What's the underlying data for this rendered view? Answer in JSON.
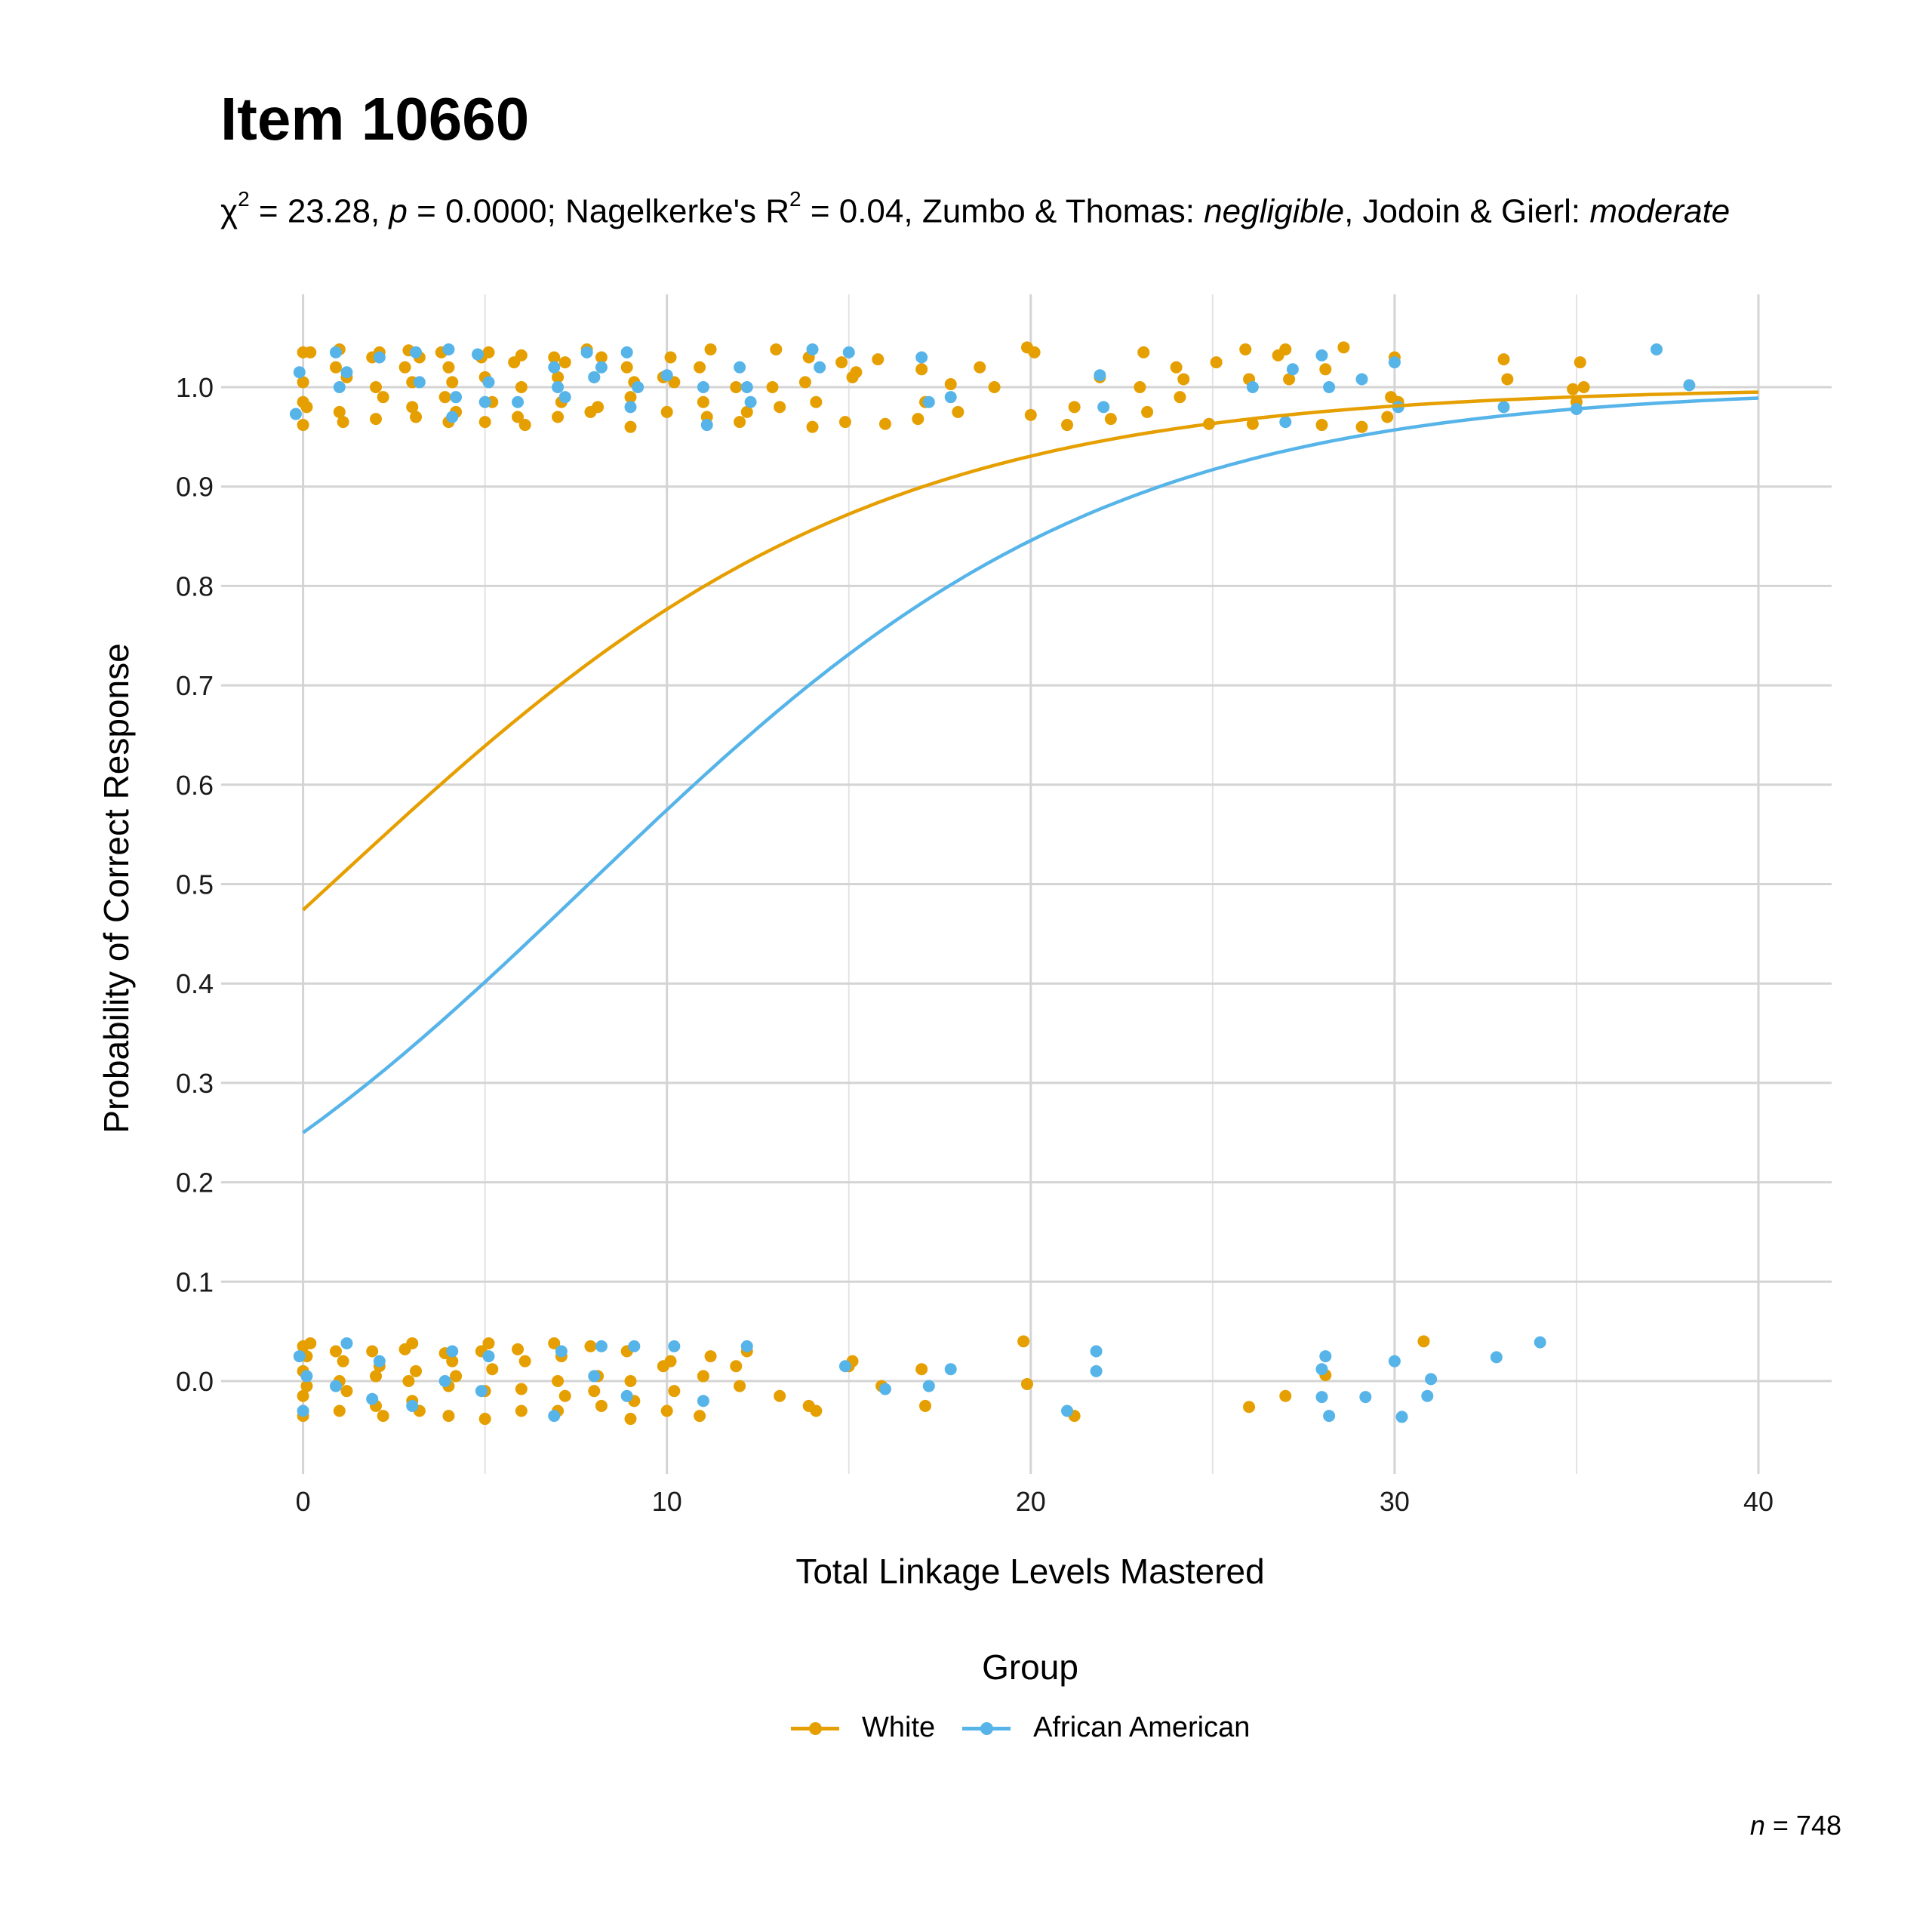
{
  "header": {
    "title": "Item 10660",
    "subtitle": {
      "chi_symbol": "χ",
      "chi_sup": "2",
      "chi_value": " = 23.28, ",
      "p_symbol": "p",
      "p_value": " = 0.0000; Nagelkerke's R",
      "r_sup": "2",
      "r_value": " = 0.04, Zumbo & Thomas: ",
      "zumbo_effect": "negligible",
      "mid": ", Jodoin & Gierl: ",
      "jodoin_effect": "moderate"
    }
  },
  "axes": {
    "xlabel": "Total Linkage Levels Mastered",
    "ylabel": "Probability of Correct Response"
  },
  "legend": {
    "title": "Group",
    "items": [
      {
        "label": "White",
        "color": "#E69F00"
      },
      {
        "label": "African American",
        "color": "#56B4E9"
      }
    ]
  },
  "caption": {
    "n_symbol": "n",
    "n_value": " = 748"
  },
  "chart_data": {
    "type": "scatter",
    "title": "Item 10660",
    "subtitle": "χ2 = 23.28, p = 0.0000; Nagelkerke's R2 = 0.04, Zumbo & Thomas: negligible, Jodoin & Gierl: moderate",
    "xlabel": "Total Linkage Levels Mastered",
    "ylabel": "Probability of Correct Response",
    "xlim": [
      -2,
      42
    ],
    "ylim": [
      -0.093,
      1.095
    ],
    "xticks": [
      0,
      10,
      20,
      30,
      40
    ],
    "yticks": [
      0.0,
      0.1,
      0.2,
      0.3,
      0.4,
      0.5,
      0.6,
      0.7,
      0.8,
      0.9,
      1.0
    ],
    "ytick_labels": [
      "0.0",
      "0.1",
      "0.2",
      "0.3",
      "0.4",
      "0.5",
      "0.6",
      "0.7",
      "0.8",
      "0.9",
      "1.0"
    ],
    "grid": true,
    "legend_position": "bottom",
    "n": 748,
    "series": [
      {
        "name": "White",
        "color": "#E69F00",
        "curve": {
          "model": "logistic",
          "intercept": -0.104,
          "slope": 0.135,
          "x": [
            0,
            5,
            10,
            15,
            20,
            25,
            30,
            35,
            40
          ],
          "y": [
            0.474,
            0.64,
            0.785,
            0.88,
            0.935,
            0.966,
            0.982,
            0.991,
            0.995
          ]
        },
        "points_correct_x": [
          0,
          0,
          0,
          0,
          0.1,
          0.2,
          0.9,
          1,
          1,
          1.1,
          1.2,
          1.9,
          2,
          2,
          2.1,
          2.2,
          2.8,
          2.9,
          3,
          3,
          3.1,
          3.2,
          3.8,
          3.9,
          4,
          4,
          4.1,
          4.2,
          4.9,
          5,
          5,
          5.1,
          5.2,
          5.8,
          5.9,
          6,
          6,
          6.1,
          6.9,
          7,
          7,
          7.1,
          7.2,
          7.8,
          7.9,
          8,
          8.1,
          8.2,
          8.9,
          9,
          9,
          9.1,
          9.9,
          10,
          10.1,
          10.2,
          10.9,
          11,
          11.1,
          11.2,
          11.9,
          12,
          12.2,
          12.9,
          13,
          13.1,
          13.8,
          13.9,
          14,
          14.1,
          14.8,
          14.9,
          15.1,
          15.2,
          15.8,
          16,
          16.9,
          17,
          17.1,
          17.8,
          18,
          18.6,
          19,
          19.9,
          20,
          20.1,
          21,
          21.2,
          21.9,
          22.2,
          23,
          23.1,
          23.2,
          24,
          24.1,
          24.2,
          24.9,
          25.1,
          25.9,
          26,
          26.1,
          26.8,
          27,
          27.1,
          28,
          28.1,
          28.6,
          29.1,
          29.8,
          29.9,
          30,
          30.1,
          33,
          33.1,
          34.9,
          35,
          35.1,
          35.2
        ],
        "points_correct_y": [
          1.035,
          0.985,
          0.962,
          1.005,
          0.98,
          1.035,
          1.02,
          1.038,
          0.975,
          0.965,
          1.01,
          1.03,
          1.0,
          0.968,
          1.035,
          0.99,
          1.02,
          1.037,
          0.98,
          1.005,
          0.97,
          1.03,
          1.035,
          0.99,
          1.02,
          0.965,
          1.005,
          0.975,
          1.03,
          0.965,
          1.01,
          1.035,
          0.985,
          1.025,
          0.97,
          1.032,
          1.0,
          0.962,
          1.03,
          0.97,
          1.01,
          0.985,
          1.025,
          1.038,
          0.975,
          1.01,
          0.98,
          1.03,
          1.02,
          0.96,
          0.99,
          1.005,
          1.01,
          0.975,
          1.03,
          1.005,
          1.02,
          0.985,
          0.97,
          1.038,
          1.0,
          0.965,
          0.975,
          1.0,
          1.038,
          0.98,
          1.005,
          1.03,
          0.96,
          0.985,
          1.025,
          0.965,
          1.01,
          1.015,
          1.028,
          0.963,
          0.968,
          1.018,
          0.985,
          1.003,
          0.975,
          1.02,
          1.0,
          1.04,
          0.972,
          1.035,
          0.962,
          0.98,
          1.01,
          0.968,
          1.0,
          1.035,
          0.975,
          1.02,
          0.99,
          1.008,
          0.963,
          1.025,
          1.038,
          1.008,
          0.963,
          1.032,
          1.038,
          1.008,
          0.962,
          1.018,
          1.04,
          0.96,
          0.97,
          0.99,
          1.03,
          0.985,
          1.028,
          1.008,
          0.998,
          0.985,
          1.025,
          1.0,
          1.038,
          0.975
        ],
        "points_incorrect_x": [
          0,
          0,
          0,
          0,
          0.1,
          0.1,
          0.2,
          0.9,
          1,
          1,
          1.1,
          1.2,
          1.9,
          2,
          2,
          2.1,
          2.2,
          2.8,
          2.9,
          3,
          3,
          3.1,
          3.2,
          3.9,
          4,
          4,
          4.1,
          4.2,
          4.9,
          5,
          5,
          5.1,
          5.2,
          5.9,
          6,
          6,
          6.1,
          6.9,
          7,
          7,
          7.1,
          7.2,
          7.9,
          8,
          8.1,
          8.2,
          8.9,
          9,
          9,
          9.1,
          9.9,
          10,
          10.1,
          10.2,
          10.9,
          11,
          11.2,
          11.9,
          12,
          12.2,
          13.1,
          13.9,
          14.1,
          15,
          15.1,
          15.9,
          17,
          17.1,
          19.8,
          19.9,
          21.2,
          26,
          27,
          28.1,
          30.8
        ],
        "points_incorrect_y": [
          0.035,
          0.01,
          -0.015,
          -0.035,
          0.025,
          -0.005,
          0.038,
          0.03,
          0.0,
          -0.03,
          0.02,
          -0.01,
          0.03,
          0.005,
          -0.025,
          0.015,
          -0.035,
          0.032,
          0.0,
          -0.02,
          0.038,
          0.01,
          -0.03,
          0.028,
          -0.005,
          -0.035,
          0.02,
          0.005,
          0.03,
          -0.01,
          -0.038,
          0.038,
          0.012,
          0.032,
          -0.008,
          -0.03,
          0.02,
          0.038,
          0.0,
          -0.03,
          0.025,
          -0.015,
          0.035,
          -0.01,
          0.005,
          -0.025,
          0.03,
          -0.038,
          0.0,
          -0.02,
          0.015,
          -0.03,
          0.02,
          -0.01,
          -0.035,
          0.005,
          0.025,
          0.015,
          -0.005,
          0.03,
          -0.015,
          -0.025,
          -0.03,
          0.015,
          0.02,
          -0.005,
          0.012,
          -0.025,
          0.04,
          -0.003,
          -0.035,
          -0.026,
          -0.015,
          0.006,
          0.04
        ]
      },
      {
        "name": "African American",
        "color": "#56B4E9",
        "curve": {
          "model": "logistic",
          "intercept": -1.099,
          "slope": 0.14,
          "x": [
            0,
            5,
            10,
            15,
            20,
            25,
            30,
            35,
            40
          ],
          "y": [
            0.25,
            0.4,
            0.572,
            0.73,
            0.845,
            0.915,
            0.955,
            0.977,
            0.989
          ]
        },
        "points_correct_x": [
          -0.1,
          -0.2,
          0.9,
          1,
          1.2,
          2.1,
          3.1,
          3.2,
          4,
          4.1,
          4.2,
          4.8,
          5,
          5.1,
          5.9,
          6.9,
          7,
          7.2,
          7.8,
          8,
          8.2,
          8.9,
          9,
          9.2,
          10,
          11,
          11.1,
          12,
          12.2,
          12.3,
          14,
          14.2,
          15,
          17,
          17.2,
          17.8,
          21.9,
          22,
          26.1,
          27,
          27.2,
          28,
          28.2,
          29.1,
          30,
          30.1,
          33,
          35,
          37.2,
          38.1
        ],
        "points_correct_y": [
          1.015,
          0.973,
          1.035,
          1.0,
          1.015,
          1.03,
          1.035,
          1.005,
          1.038,
          0.97,
          0.99,
          1.033,
          0.985,
          1.005,
          0.985,
          1.02,
          1.0,
          0.99,
          1.035,
          1.01,
          1.02,
          1.035,
          0.98,
          1.0,
          1.012,
          1.0,
          0.962,
          1.02,
          1.0,
          0.985,
          1.038,
          1.02,
          1.035,
          1.03,
          0.985,
          0.99,
          1.012,
          0.98,
          1.0,
          0.965,
          1.018,
          1.032,
          1.0,
          1.008,
          1.025,
          0.98,
          0.98,
          0.978,
          1.038,
          1.002
        ],
        "points_incorrect_x": [
          -0.1,
          0,
          0.1,
          0.9,
          1.2,
          1.9,
          2.1,
          3,
          3.9,
          4.1,
          4.9,
          5.1,
          6.9,
          7.1,
          8,
          8.2,
          8.9,
          9.1,
          10.2,
          11,
          12.2,
          14.9,
          16,
          17.2,
          17.8,
          21,
          21.8,
          21.8,
          28,
          28,
          28.1,
          28.2,
          29.2,
          30,
          30.2,
          30.9,
          31,
          32.8,
          34
        ],
        "points_incorrect_y": [
          0.025,
          -0.03,
          0.005,
          -0.005,
          0.038,
          -0.018,
          0.02,
          -0.025,
          0.0,
          0.03,
          -0.01,
          0.025,
          -0.035,
          0.03,
          0.005,
          0.035,
          -0.015,
          0.035,
          0.035,
          -0.02,
          0.035,
          0.015,
          -0.008,
          -0.005,
          0.012,
          -0.03,
          0.03,
          0.01,
          -0.016,
          0.012,
          0.025,
          -0.035,
          -0.016,
          0.02,
          -0.036,
          -0.015,
          0.002,
          0.024,
          0.039
        ]
      }
    ]
  }
}
